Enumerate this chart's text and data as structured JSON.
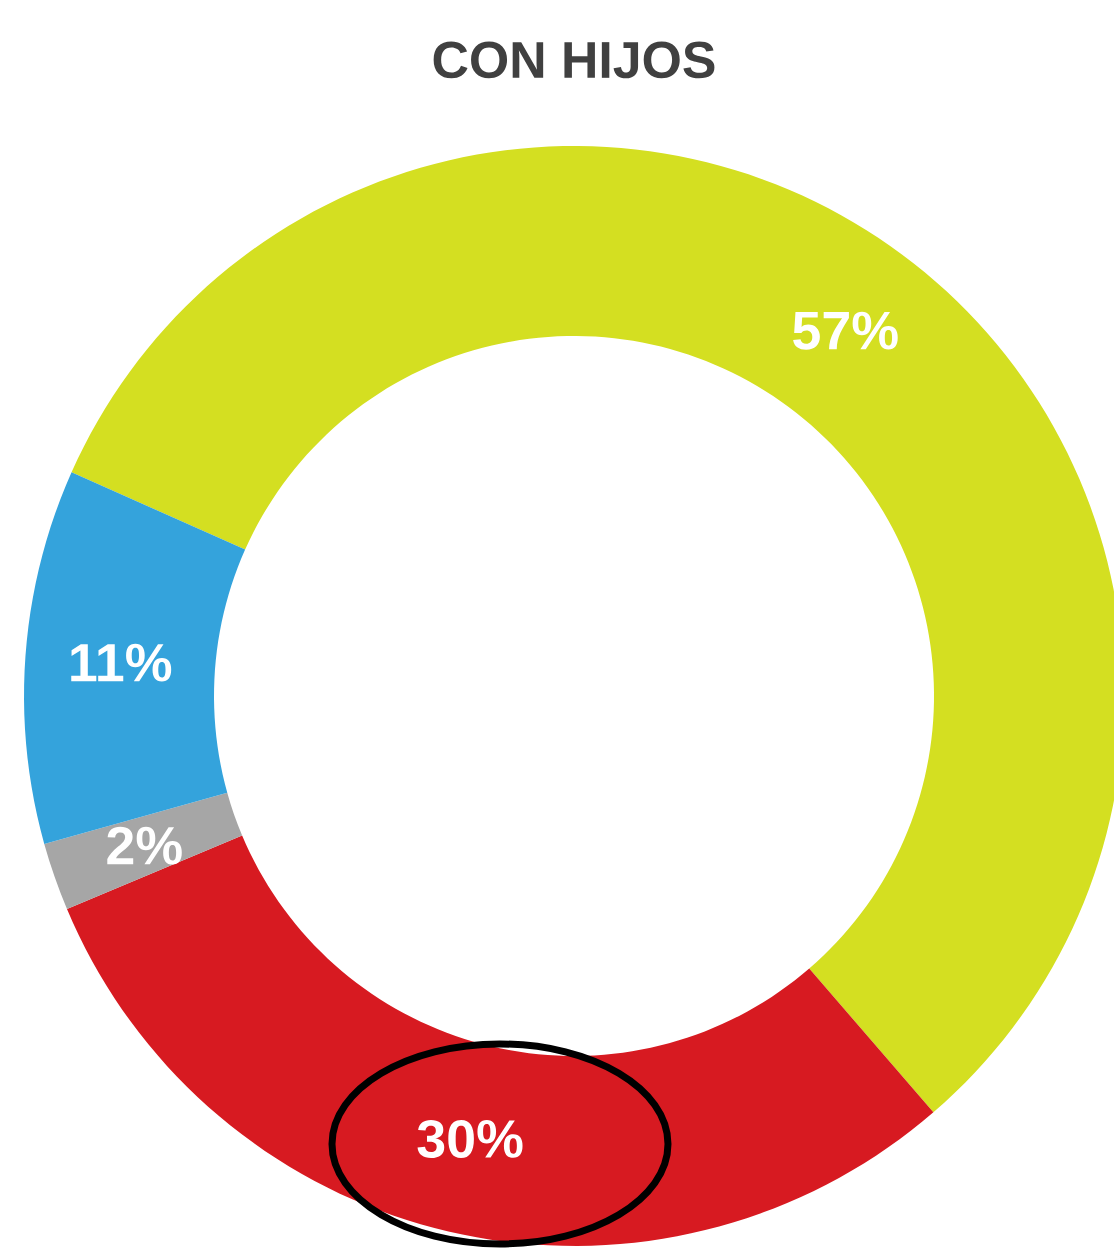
{
  "chart_data": {
    "type": "donut",
    "title": "CON HIJOS",
    "categories": [
      null,
      null,
      null,
      null
    ],
    "values": [
      57,
      30,
      2,
      11
    ],
    "colors": [
      "#d4df21",
      "#d71a21",
      "#a6a6a6",
      "#34a3dc"
    ],
    "value_labels": [
      "57%",
      "30%",
      "2%",
      "11%"
    ]
  }
}
